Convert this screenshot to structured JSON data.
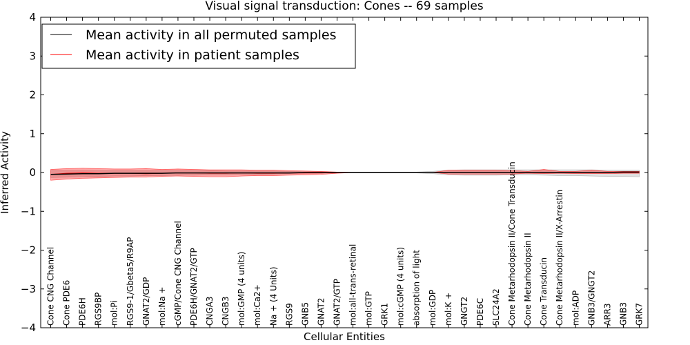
{
  "chart_data": {
    "type": "line",
    "title": "Visual signal transduction: Cones -- 69 samples",
    "xlabel": "Cellular Entities",
    "ylabel": "Inferred Activity",
    "ylim": [
      -4,
      4
    ],
    "yticks": [
      4,
      3,
      2,
      1,
      0,
      -1,
      -2,
      -3,
      -4
    ],
    "ytick_labels": [
      "4",
      "3",
      "2",
      "1",
      "0",
      "−1",
      "−2",
      "−3",
      "−4"
    ],
    "legend_position": "top-left",
    "categories": [
      "Cone CNG Channel",
      "Cone PDE6",
      "PDE6H",
      "RGS9BP",
      "mol:Pi",
      "RGS9-1/Gbeta5/R9AP",
      "GNAT2/GDP",
      "mol:Na +",
      "cGMP/Cone CNG Channel",
      "PDE6H/GNAT2/GTP",
      "CNGA3",
      "CNGB3",
      "mol:GMP (4 units)",
      "mol:Ca2+",
      "Na + (4 Units)",
      "RGS9",
      "GNB5",
      "GNAT2",
      "GNAT2/GTP",
      "mol:all-trans-retinal",
      "mol:GTP",
      "GRK1",
      "mol:cGMP (4 units)",
      "absorption of light",
      "mol:GDP",
      "mol:K +",
      "GNGT2",
      "PDE6C",
      "SLC24A2",
      "Cone Metarhodopsin II/Cone Transducin",
      "Cone Metarhodopsin II",
      "Cone Transducin",
      "Cone Metarhodopsin II/X-Arrestin",
      "mol:ADP",
      "GNB3/GNGT2",
      "ARR3",
      "GNB3",
      "GRK7"
    ],
    "series": [
      {
        "name": "Mean activity in all permuted samples",
        "color": "#000000",
        "values": [
          -0.05,
          -0.04,
          -0.03,
          -0.03,
          -0.02,
          -0.02,
          -0.02,
          -0.02,
          -0.01,
          -0.01,
          -0.01,
          -0.01,
          -0.01,
          -0.01,
          -0.01,
          -0.01,
          0,
          0,
          0,
          0,
          0,
          0,
          0,
          0,
          0,
          0,
          0,
          0,
          0,
          0,
          0,
          0,
          0,
          0,
          0,
          0,
          0.01,
          0.01
        ],
        "band_lower": [
          -0.13,
          -0.12,
          -0.11,
          -0.1,
          -0.09,
          -0.09,
          -0.08,
          -0.08,
          -0.07,
          -0.07,
          -0.06,
          -0.06,
          -0.05,
          -0.05,
          -0.04,
          -0.03,
          -0.02,
          -0.02,
          -0.01,
          -0.01,
          -0.01,
          -0.01,
          -0.01,
          -0.01,
          -0.03,
          -0.06,
          -0.07,
          -0.07,
          -0.07,
          -0.06,
          -0.06,
          -0.07,
          -0.08,
          -0.08,
          -0.09,
          -0.1,
          -0.1,
          -0.11
        ],
        "band_upper": [
          0.05,
          0.05,
          0.05,
          0.05,
          0.05,
          0.05,
          0.05,
          0.05,
          0.05,
          0.05,
          0.05,
          0.04,
          0.04,
          0.04,
          0.04,
          0.03,
          0.02,
          0.02,
          0.01,
          0.01,
          0.01,
          0.01,
          0.01,
          0.01,
          0.03,
          0.06,
          0.07,
          0.07,
          0.07,
          0.07,
          0.07,
          0.07,
          0.07,
          0.07,
          0.07,
          0.06,
          0.06,
          0.06
        ]
      },
      {
        "name": "Mean activity in patient samples",
        "color": "#ff0000",
        "values": [
          -0.05,
          -0.02,
          -0.01,
          -0.02,
          -0.02,
          -0.02,
          -0.03,
          -0.02,
          -0.01,
          -0.01,
          -0.02,
          -0.02,
          -0.01,
          -0.02,
          -0.02,
          -0.01,
          -0.01,
          -0.01,
          0,
          0,
          0,
          0,
          0,
          0,
          0,
          0,
          0,
          0,
          0,
          0,
          0,
          0,
          0,
          0,
          0,
          0,
          0,
          0
        ],
        "band_lower": [
          -0.2,
          -0.17,
          -0.15,
          -0.14,
          -0.13,
          -0.12,
          -0.12,
          -0.1,
          -0.09,
          -0.1,
          -0.11,
          -0.11,
          -0.09,
          -0.08,
          -0.08,
          -0.07,
          -0.06,
          -0.05,
          -0.02,
          0,
          0,
          0,
          0,
          0,
          0,
          -0.04,
          -0.04,
          -0.04,
          -0.04,
          -0.04,
          -0.02,
          -0.03,
          -0.02,
          -0.03,
          -0.03,
          -0.03,
          -0.02,
          -0.02
        ],
        "band_upper": [
          0.08,
          0.1,
          0.11,
          0.1,
          0.09,
          0.09,
          0.1,
          0.08,
          0.09,
          0.08,
          0.07,
          0.07,
          0.07,
          0.06,
          0.06,
          0.05,
          0.04,
          0.03,
          0.01,
          0,
          0,
          0,
          0,
          0,
          0,
          0.06,
          0.06,
          0.06,
          0.06,
          0.05,
          0.03,
          0.08,
          0.03,
          0.03,
          0.06,
          0.03,
          0.03,
          0.03
        ]
      }
    ]
  }
}
